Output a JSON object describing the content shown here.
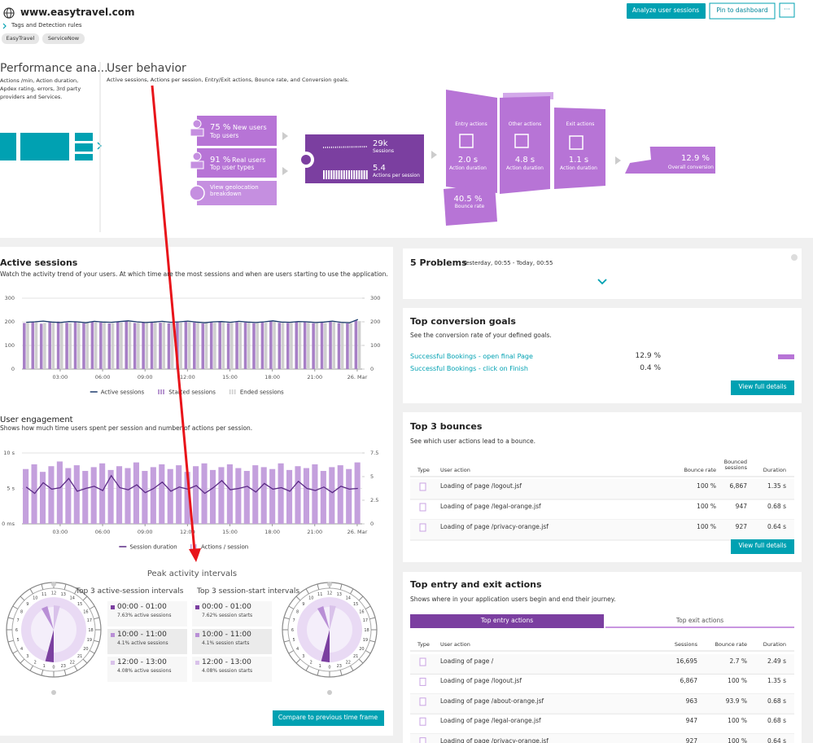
{
  "header": {
    "site": "www.easytravel.com",
    "tags_link": "Tags and Detection rules",
    "tags": [
      "EasyTravel",
      "ServiceNow"
    ],
    "buttons": [
      "Analyze user sessions",
      "Pin to dashboard",
      "···"
    ]
  },
  "performance": {
    "title": "Performance ana...",
    "description": "Actions /min, Action duration, Apdex rating, errors, 3rd party providers and Services."
  },
  "user_behavior": {
    "title": "User behavior",
    "description": "Active sessions, Actions per session, Entry/Exit actions, Bounce rate, and Conversion goals.",
    "new_users": {
      "value": "75 %",
      "label": "New users",
      "link": "Top users"
    },
    "real_users": {
      "value": "91 %",
      "label": "Real users",
      "link": "Top user types"
    },
    "geolocation": "View geolocation breakdown",
    "sessions": {
      "value": "29k",
      "label": "Sessions",
      "actions_value": "5.4",
      "actions_label": "Actions per session"
    },
    "entry": {
      "title": "Entry actions",
      "value": "2.0 s",
      "label": "Action duration"
    },
    "other": {
      "title": "Other actions",
      "value": "4.8 s",
      "label": "Action duration"
    },
    "exit": {
      "title": "Exit actions",
      "value": "1.1 s",
      "label": "Action duration"
    },
    "bounce": {
      "value": "40.5 %",
      "label": "Bounce rate"
    },
    "conversion": {
      "value": "12.9 %",
      "label": "Overall conversion"
    }
  },
  "active_sessions": {
    "title": "Active sessions",
    "description": "Watch the activity trend of your users. At which time are the most sessions and when are users starting to use the application.",
    "chart": {
      "type": "combo",
      "xlim": [
        0.3,
        24.35
      ],
      "xticks": [
        {
          "value": 3,
          "label": "03:00"
        },
        {
          "value": 6,
          "label": "06:00"
        },
        {
          "value": 9,
          "label": "09:00"
        },
        {
          "value": 12,
          "label": "12:00"
        },
        {
          "value": 15,
          "label": "15:00"
        },
        {
          "value": 18,
          "label": "18:00"
        },
        {
          "value": 21,
          "label": "21:00"
        },
        {
          "value": 24,
          "label": "26. Mar"
        }
      ],
      "ylim": [
        0,
        300
      ],
      "yticks": [
        0,
        100,
        200,
        300
      ],
      "y2lim": [
        0,
        300
      ],
      "y2ticks": [
        0,
        100,
        200,
        300
      ],
      "series": [
        {
          "name": "Active sessions",
          "type": "line",
          "color": "#1d3c6e",
          "values": [
            198,
            200,
            203,
            199,
            197,
            201,
            200,
            196,
            202,
            199,
            198,
            201,
            204,
            200,
            197,
            199,
            202,
            198,
            200,
            203,
            199,
            196,
            200,
            201,
            198,
            202,
            199,
            197,
            200,
            204,
            199,
            198,
            201,
            200,
            197,
            199,
            203,
            198,
            196,
            210
          ]
        },
        {
          "name": "Started sessions",
          "type": "bar",
          "color": "#a77fc6",
          "values": [
            195,
            200,
            192,
            198,
            201,
            196,
            199,
            194,
            200,
            197,
            193,
            199,
            202,
            195,
            198,
            200,
            196,
            194,
            199,
            201,
            197,
            193,
            198,
            200,
            195,
            199,
            197,
            194,
            198,
            202,
            196,
            195,
            199,
            198,
            194,
            197,
            201,
            195,
            193,
            205
          ]
        },
        {
          "name": "Ended sessions",
          "type": "bar",
          "color": "#cfcfcf",
          "values": [
            197,
            198,
            195,
            200,
            199,
            194,
            201,
            196,
            198,
            199,
            195,
            197,
            200,
            197,
            196,
            202,
            198,
            195,
            197,
            199,
            199,
            195,
            196,
            202,
            197,
            197,
            199,
            196,
            196,
            200,
            198,
            197,
            197,
            200,
            196,
            195,
            199,
            197,
            195,
            203
          ]
        }
      ]
    }
  },
  "user_engagement": {
    "title": "User engagement",
    "description": "Shows how much time users spent per session and number of actions per session.",
    "chart": {
      "type": "combo",
      "xlim": [
        0.3,
        24.35
      ],
      "xticks": [
        {
          "value": 3,
          "label": "03:00"
        },
        {
          "value": 6,
          "label": "06:00"
        },
        {
          "value": 9,
          "label": "09:00"
        },
        {
          "value": 12,
          "label": "12:00"
        },
        {
          "value": 15,
          "label": "15:00"
        },
        {
          "value": 18,
          "label": "18:00"
        },
        {
          "value": 21,
          "label": "21:00"
        },
        {
          "value": 24,
          "label": "26. Mar"
        }
      ],
      "ylim": [
        0,
        10
      ],
      "yticks": [
        {
          "value": 0,
          "label": "0 ms"
        },
        {
          "value": 5,
          "label": "5 s"
        },
        {
          "value": 10,
          "label": "10 s"
        }
      ],
      "y2lim": [
        0,
        7.5
      ],
      "y2ticks": [
        0,
        2.5,
        5,
        7.5
      ],
      "series": [
        {
          "name": "Session duration",
          "type": "line",
          "color": "#5b2a86",
          "values": [
            5.2,
            4.3,
            5.8,
            4.9,
            5.1,
            6.4,
            4.6,
            5.0,
            5.3,
            4.7,
            6.8,
            5.1,
            4.8,
            5.5,
            4.4,
            5.0,
            5.9,
            4.6,
            5.2,
            4.9,
            5.4,
            4.3,
            5.1,
            6.1,
            4.8,
            5.0,
            5.3,
            4.5,
            5.7,
            4.9,
            5.1,
            4.6,
            6.0,
            5.0,
            4.7,
            5.2,
            4.4,
            5.3,
            4.9,
            5.0
          ]
        },
        {
          "name": "Actions / session",
          "type": "bar",
          "axis": "y2",
          "color": "#c4a0dd",
          "values": [
            5.8,
            6.3,
            5.5,
            6.1,
            6.6,
            5.9,
            6.2,
            5.6,
            6.0,
            6.4,
            5.7,
            6.1,
            5.9,
            6.5,
            5.6,
            6.0,
            6.3,
            5.8,
            6.2,
            5.5,
            6.1,
            6.4,
            5.7,
            6.0,
            6.3,
            5.9,
            5.6,
            6.2,
            6.0,
            5.8,
            6.4,
            5.7,
            6.1,
            5.9,
            6.3,
            5.6,
            6.0,
            6.2,
            5.8,
            6.5
          ]
        }
      ]
    }
  },
  "peak_activity": {
    "title": "Peak activity intervals",
    "clock_hours": [
      0,
      1,
      2,
      3,
      4,
      5,
      6,
      7,
      8,
      9,
      10,
      11,
      12,
      13,
      14,
      15,
      16,
      17,
      18,
      19,
      20,
      21,
      22,
      23
    ],
    "active": {
      "title": "Top 3 active-session intervals",
      "rows": [
        {
          "interval": "00:00 - 01:00",
          "share": "7.63% active sessions"
        },
        {
          "interval": "10:00 - 11:00",
          "share": "4.1% active sessions"
        },
        {
          "interval": "12:00 - 13:00",
          "share": "4.08% active sessions"
        }
      ]
    },
    "starts": {
      "title": "Top 3 session-start intervals",
      "rows": [
        {
          "interval": "00:00 - 01:00",
          "share": "7.62% session starts"
        },
        {
          "interval": "10:00 - 11:00",
          "share": "4.1% session starts"
        },
        {
          "interval": "12:00 - 13:00",
          "share": "4.08% session starts"
        }
      ]
    },
    "button": "Compare to previous time frame"
  },
  "problems": {
    "title": "5 Problems",
    "timeframe": "Yesterday, 00:55 - Today, 00:55"
  },
  "conversion_goals": {
    "title": "Top conversion goals",
    "description": "See the conversion rate of your defined goals.",
    "rows": [
      [
        "Successful Bookings - open final Page",
        "12.9 %"
      ],
      [
        "Successful Bookings - click on Finish",
        "0.4 %"
      ]
    ],
    "button": "View full details"
  },
  "bounces": {
    "title": "Top 3 bounces",
    "description": "See which user actions lead to a bounce.",
    "columns": [
      "Type",
      "User action",
      "Bounce rate",
      "Bounced sessions",
      "Duration"
    ],
    "rows": [
      [
        "Loading of page /logout.jsf",
        "100 %",
        "6,867",
        "1.35 s"
      ],
      [
        "Loading of page /legal-orange.jsf",
        "100 %",
        "947",
        "0.68 s"
      ],
      [
        "Loading of page /privacy-orange.jsf",
        "100 %",
        "927",
        "0.64 s"
      ]
    ],
    "button": "View full details"
  },
  "entry_exit": {
    "title": "Top entry and exit actions",
    "description": "Shows where in your application users begin and end their journey.",
    "tabs": [
      "Top entry actions",
      "Top exit actions"
    ],
    "columns": [
      "Type",
      "User action",
      "Sessions",
      "Bounce rate",
      "Duration"
    ],
    "rows": [
      [
        "Loading of page /",
        "16,695",
        "2.7 %",
        "2.49 s"
      ],
      [
        "Loading of page /logout.jsf",
        "6,867",
        "100 %",
        "1.35 s"
      ],
      [
        "Loading of page /about-orange.jsf",
        "963",
        "93.9 %",
        "0.68 s"
      ],
      [
        "Loading of page /legal-orange.jsf",
        "947",
        "100 %",
        "0.68 s"
      ],
      [
        "Loading of page /privacy-orange.jsf",
        "927",
        "100 %",
        "0.64 s"
      ]
    ]
  }
}
